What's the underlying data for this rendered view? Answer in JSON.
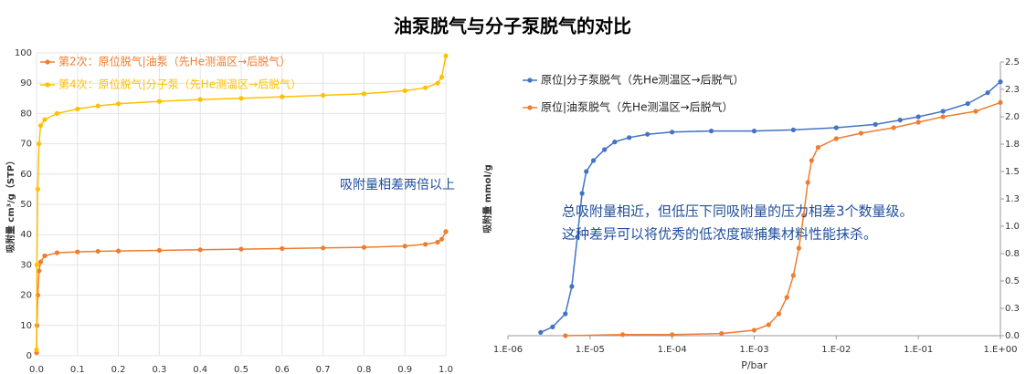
{
  "title": "油泵脱气与分子泵脱气的对比",
  "chart_data": [
    {
      "type": "line",
      "ylabel": "吸附量 cm³/g（STP）",
      "xlim": [
        0,
        1
      ],
      "xticks": [
        {
          "value": 0,
          "label": "0.0"
        },
        0.1,
        0.2,
        0.3,
        0.4,
        0.5,
        0.6,
        0.7,
        0.8,
        0.9,
        {
          "value": 1,
          "label": "1.0"
        }
      ],
      "ylim": [
        0,
        100
      ],
      "yticks": [
        0,
        10,
        20,
        30,
        40,
        50,
        60,
        70,
        80,
        90,
        100
      ],
      "grid": true,
      "legend": "upper left",
      "yaxis_side": "left",
      "annotations": [
        "吸附量相差两倍以上"
      ],
      "series": [
        {
          "name": "第2次：原位脱气|油泵（先He测温区→后脱气）",
          "color": "#ed7d31",
          "x": [
            0,
            0.001,
            0.003,
            0.006,
            0.01,
            0.02,
            0.05,
            0.1,
            0.15,
            0.2,
            0.3,
            0.4,
            0.5,
            0.6,
            0.7,
            0.8,
            0.9,
            0.95,
            0.98,
            0.99,
            1.0
          ],
          "values": [
            1,
            10,
            20,
            28,
            31,
            33,
            34,
            34.3,
            34.5,
            34.6,
            34.8,
            35,
            35.2,
            35.4,
            35.6,
            35.8,
            36.2,
            36.8,
            37.5,
            38.5,
            41
          ]
        },
        {
          "name": "第4次：原位脱气|分子泵（先He测温区→后脱气）",
          "color": "#ffc000",
          "x": [
            0,
            0.001,
            0.003,
            0.006,
            0.01,
            0.02,
            0.05,
            0.1,
            0.15,
            0.2,
            0.3,
            0.4,
            0.5,
            0.6,
            0.7,
            0.8,
            0.9,
            0.95,
            0.98,
            0.99,
            1.0
          ],
          "values": [
            2,
            30,
            55,
            70,
            76,
            78,
            80,
            81.5,
            82.5,
            83.2,
            84,
            84.6,
            85,
            85.5,
            86,
            86.5,
            87.5,
            88.5,
            90,
            92,
            99
          ]
        }
      ]
    },
    {
      "type": "line",
      "ylabel": "吸附量 mmol/g",
      "xlabel": "P/bar",
      "xscale": "log",
      "xlim": [
        1e-06,
        1
      ],
      "xticks": [
        {
          "value": 1e-06,
          "label": "1.E-06"
        },
        {
          "value": 1e-05,
          "label": "1.E-05"
        },
        {
          "value": 0.0001,
          "label": "1.E-04"
        },
        {
          "value": 0.001,
          "label": "1.E-03"
        },
        {
          "value": 0.01,
          "label": "1.E-02"
        },
        {
          "value": 0.1,
          "label": "1.E-01"
        },
        {
          "value": 1,
          "label": "1.E+00"
        }
      ],
      "ylim": [
        0,
        2.5
      ],
      "yticks": [
        {
          "value": 0,
          "label": "0.0"
        },
        {
          "value": 0.25,
          "label": "0.3"
        },
        0.5,
        {
          "value": 0.75,
          "label": "0.8"
        },
        {
          "value": 1,
          "label": "1.0"
        },
        {
          "value": 1.25,
          "label": "1.3"
        },
        1.5,
        {
          "value": 1.75,
          "label": "1.8"
        },
        {
          "value": 2,
          "label": "2.0"
        },
        {
          "value": 2.25,
          "label": "2.3"
        },
        2.5
      ],
      "grid": false,
      "legend": "upper left",
      "yaxis_side": "right",
      "annotations": [
        "总吸附量相近，但低压下同吸附量的压力相差3个数量级。",
        "这种差异可以将优秀的低浓度碳捕集材料性能抹杀。"
      ],
      "series": [
        {
          "name": "原位|分子泵脱气（先He测温区→后脱气）",
          "color": "#4472c4",
          "x": [
            2.5e-06,
            3.5e-06,
            5e-06,
            6e-06,
            7e-06,
            8e-06,
            9e-06,
            1.1e-05,
            1.5e-05,
            2e-05,
            3e-05,
            5e-05,
            0.0001,
            0.0003,
            0.001,
            0.003,
            0.01,
            0.03,
            0.06,
            0.1,
            0.2,
            0.4,
            0.7,
            1.0
          ],
          "values": [
            0.03,
            0.08,
            0.2,
            0.45,
            0.9,
            1.3,
            1.5,
            1.6,
            1.7,
            1.77,
            1.81,
            1.84,
            1.86,
            1.87,
            1.87,
            1.88,
            1.9,
            1.93,
            1.97,
            2.0,
            2.05,
            2.12,
            2.22,
            2.32
          ]
        },
        {
          "name": "原位|油泵脱气（先He测温区→后脱气）",
          "color": "#ed7d31",
          "x": [
            5e-06,
            2.5e-05,
            0.0001,
            0.0004,
            0.001,
            0.0015,
            0.002,
            0.0025,
            0.003,
            0.0035,
            0.004,
            0.0045,
            0.005,
            0.006,
            0.01,
            0.02,
            0.05,
            0.1,
            0.2,
            0.5,
            1.0
          ],
          "values": [
            0.0,
            0.01,
            0.01,
            0.02,
            0.05,
            0.1,
            0.2,
            0.35,
            0.55,
            0.8,
            1.1,
            1.4,
            1.6,
            1.72,
            1.8,
            1.85,
            1.9,
            1.95,
            2.0,
            2.05,
            2.13
          ]
        }
      ]
    }
  ]
}
